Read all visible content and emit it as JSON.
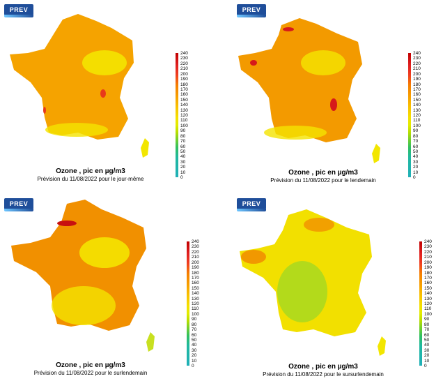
{
  "logo_text": "PREV AIR",
  "legend_ticks": [
    "240",
    "230",
    "220",
    "210",
    "200",
    "190",
    "180",
    "170",
    "160",
    "150",
    "140",
    "130",
    "120",
    "110",
    "100",
    "90",
    "80",
    "70",
    "60",
    "50",
    "40",
    "30",
    "20",
    "10",
    "0"
  ],
  "panels": [
    {
      "title": "Ozone , pic en µg/m3",
      "subtitle": "Prévision du 11/08/2022 pour le jour-même",
      "base_color": "#f5a300",
      "center_color": "#f4e400",
      "hotspot_color": "#e83a1a",
      "corsica_color": "#f2e600"
    },
    {
      "title": "Ozone , pic en µg/m3",
      "subtitle": "Prévision du 11/08/2022 pour le lendemain",
      "base_color": "#f39a00",
      "center_color": "#f4dd00",
      "hotspot_color": "#d61a1a",
      "corsica_color": "#f2e600"
    },
    {
      "title": "Ozone , pic en µg/m3",
      "subtitle": "Prévision du 11/08/2022 pour le surlendemain",
      "base_color": "#f19000",
      "center_color": "#f4e400",
      "hotspot_color": "#c81010",
      "corsica_color": "#c8e020"
    },
    {
      "title": "Ozone , pic en µg/m3",
      "subtitle": "Prévision du 11/08/2022 pour le sursurlendemain",
      "base_color": "#f2e000",
      "center_color": "#a8d820",
      "hotspot_color": "#f19000",
      "corsica_color": "#f2e600"
    }
  ]
}
